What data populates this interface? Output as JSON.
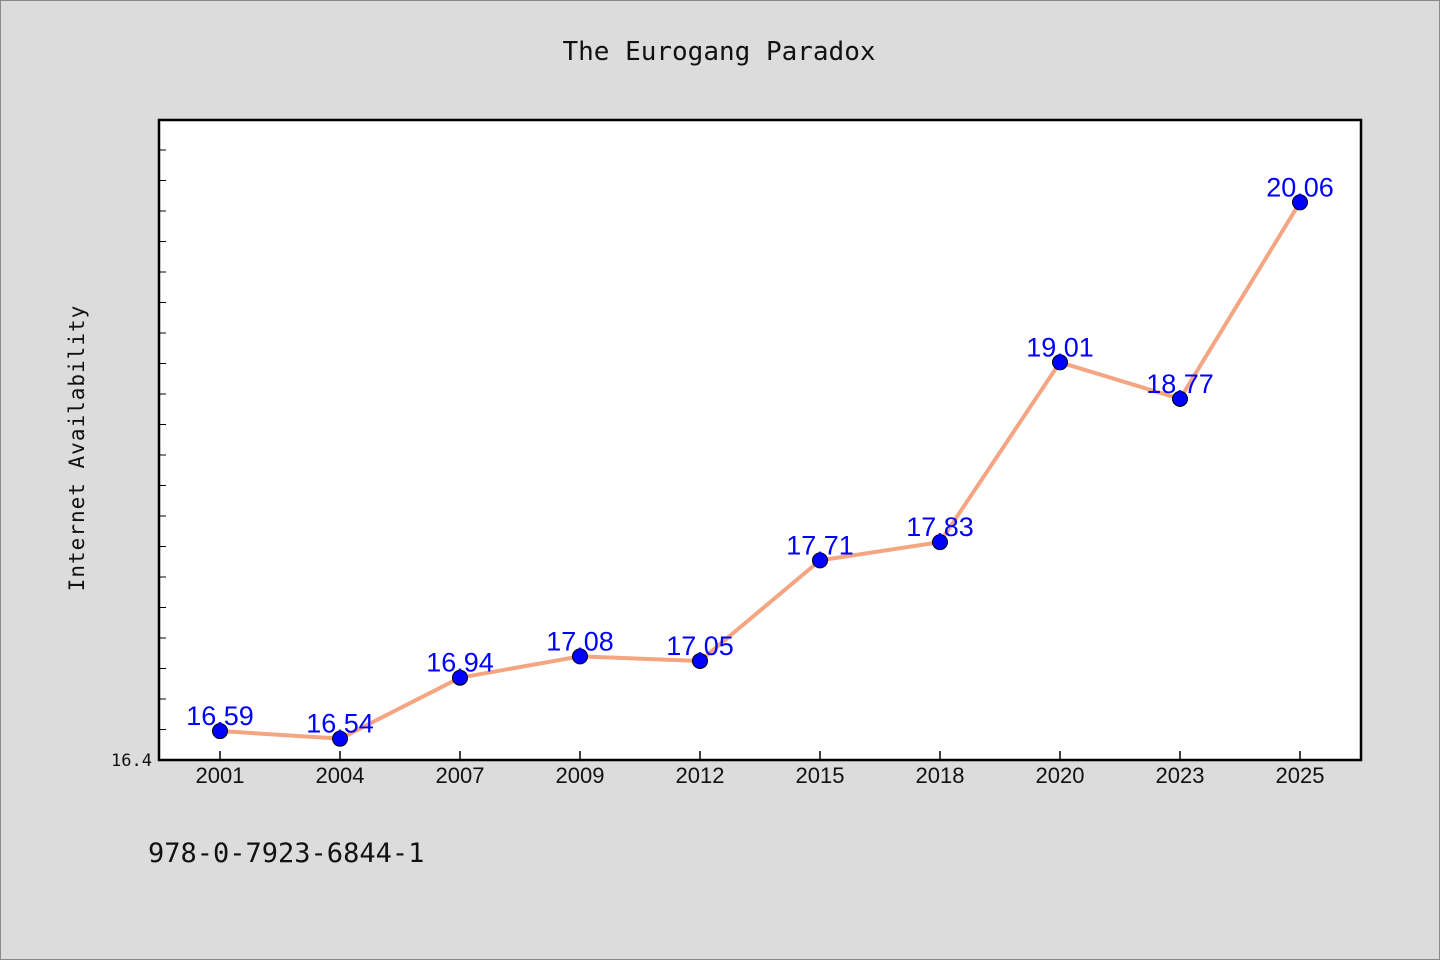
{
  "chart_data": {
    "type": "line",
    "title": "The Eurogang Paradox",
    "ylabel": "Internet Availability",
    "xlabel": "",
    "categories": [
      "2001",
      "2004",
      "2007",
      "2009",
      "2012",
      "2015",
      "2018",
      "2020",
      "2023",
      "2025"
    ],
    "values": [
      16.59,
      16.54,
      16.94,
      17.08,
      17.05,
      17.71,
      17.83,
      19.01,
      18.77,
      20.06
    ],
    "ylim": [
      16.4,
      20.6
    ],
    "ytick_labels": [
      "16.4"
    ],
    "data_labels": true,
    "grid": false,
    "colors": {
      "line": "#f4a582",
      "marker": "#0000ff",
      "label": "#0000ff"
    }
  },
  "footer": {
    "isbn": "978-0-7923-6844-1"
  }
}
